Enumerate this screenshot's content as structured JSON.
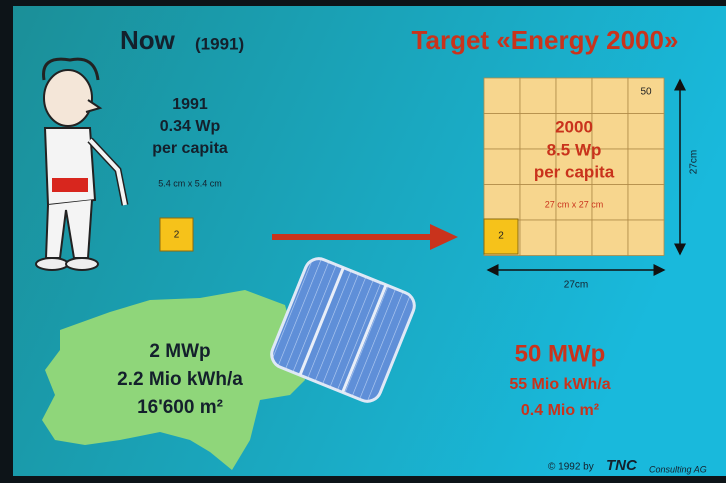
{
  "header": {
    "now": {
      "title": "Now",
      "year": "(1991)"
    },
    "target": "Target «Energy 2000»"
  },
  "now_panel": {
    "lines": [
      "1991",
      "0.34 Wp",
      "per capita"
    ],
    "size": "5.4 cm x 5.4 cm",
    "square_label": "2"
  },
  "target_panel": {
    "corner_label": "50",
    "lines": [
      "2000",
      "8.5 Wp",
      "per capita"
    ],
    "size": "27 cm x 27 cm",
    "square_label": "2",
    "height_label": "27cm",
    "width_label": "27cm"
  },
  "now_totals": [
    "2 MWp",
    "2.2 Mio kWh/a",
    "16'600 m²"
  ],
  "target_totals": [
    "50 MWp",
    "55 Mio kWh/a",
    "0.4 Mio m²"
  ],
  "footer": {
    "copyright": "© 1992 by",
    "brand": "TNC",
    "brand_suffix": "Consulting AG"
  }
}
